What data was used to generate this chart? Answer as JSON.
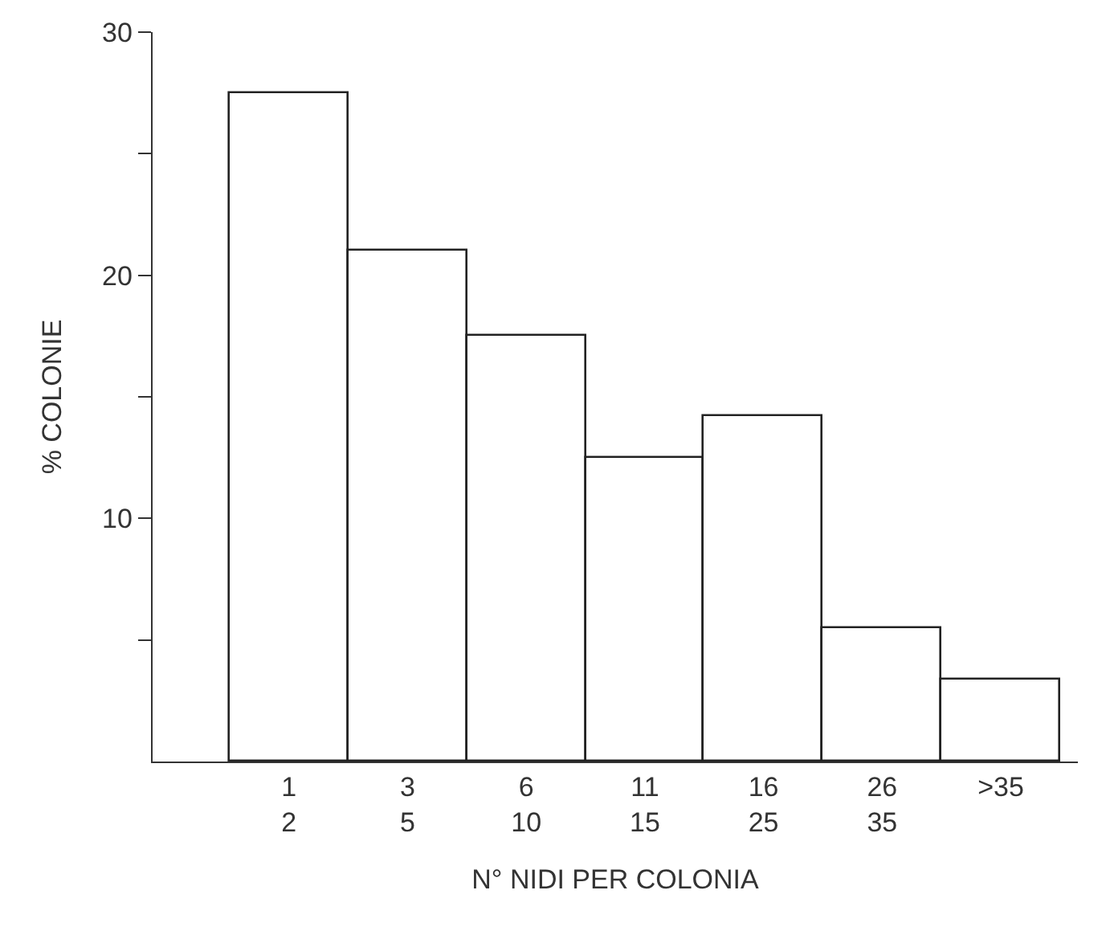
{
  "chart_data": {
    "type": "bar",
    "xlabel": "N° NIDI PER COLONIA",
    "ylabel": "% COLONIE",
    "categories": [
      "1\n2",
      "3\n5",
      "6\n10",
      "11\n15",
      "16\n25",
      "26\n35",
      ">35"
    ],
    "values": [
      27.5,
      21,
      17.5,
      12.5,
      14.2,
      5.5,
      3.4
    ],
    "color": "#ffffff",
    "ylim": [
      0,
      30
    ],
    "yticks": [
      {
        "value": 5,
        "label": null
      },
      10,
      {
        "value": 15,
        "label": null
      },
      20,
      {
        "value": 25,
        "label": null
      },
      30
    ],
    "grid": false
  }
}
